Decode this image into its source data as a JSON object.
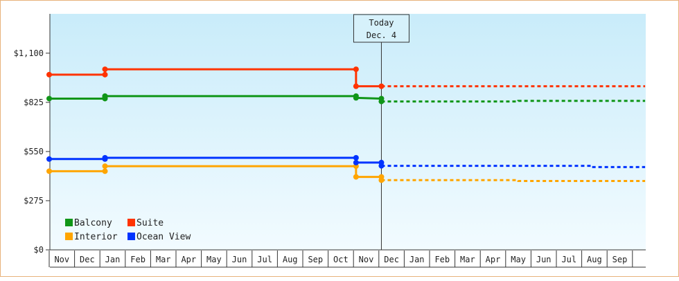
{
  "chart_data": {
    "type": "line",
    "title": "",
    "xlabel": "",
    "ylabel": "",
    "ylim": [
      0,
      1320
    ],
    "yticks": [
      {
        "value": 0,
        "label": "$0"
      },
      {
        "value": 275,
        "label": "$275"
      },
      {
        "value": 550,
        "label": "$550"
      },
      {
        "value": 825,
        "label": "$825"
      },
      {
        "value": 1100,
        "label": "$1,100"
      }
    ],
    "month_labels": [
      "Nov",
      "Dec",
      "Jan",
      "Feb",
      "Mar",
      "Apr",
      "May",
      "Jun",
      "Jul",
      "Aug",
      "Sep",
      "Oct",
      "Nov",
      "Dec",
      "Jan",
      "Feb",
      "Mar",
      "Apr",
      "May",
      "Jun",
      "Jul",
      "Aug",
      "Sep"
    ],
    "today": {
      "month_index": 13.1,
      "line1": "Today",
      "line2": "Dec. 4"
    },
    "legend": {
      "placement": "bottom-left",
      "entries": [
        {
          "name": "Balcony",
          "color": "#109618"
        },
        {
          "name": "Suite",
          "color": "#ff3300"
        },
        {
          "name": "Interior",
          "color": "#ffa500"
        },
        {
          "name": "Ocean View",
          "color": "#0033ff"
        }
      ]
    },
    "grid": false,
    "series": [
      {
        "name": "Balcony",
        "color": "#109618",
        "points": [
          [
            0,
            846
          ],
          [
            2.2,
            846
          ],
          [
            2.2,
            855
          ],
          [
            2.2,
            860
          ],
          [
            12.1,
            860
          ],
          [
            12.1,
            850
          ],
          [
            13.1,
            846
          ],
          [
            13.1,
            830
          ]
        ],
        "markers": [
          [
            0,
            846
          ],
          [
            2.2,
            846
          ],
          [
            2.2,
            855
          ],
          [
            2.2,
            860
          ],
          [
            12.1,
            860
          ],
          [
            12.1,
            850
          ],
          [
            13.1,
            846
          ],
          [
            13.1,
            830
          ]
        ],
        "forecast": [
          [
            13.1,
            830
          ],
          [
            18.5,
            830
          ],
          [
            18.5,
            833
          ],
          [
            23.5,
            833
          ]
        ]
      },
      {
        "name": "Suite",
        "color": "#ff3300",
        "points": [
          [
            0,
            980
          ],
          [
            2.2,
            980
          ],
          [
            2.2,
            1010
          ],
          [
            12.1,
            1010
          ],
          [
            12.1,
            915
          ],
          [
            13.1,
            915
          ]
        ],
        "markers": [
          [
            0,
            980
          ],
          [
            2.2,
            980
          ],
          [
            2.2,
            1010
          ],
          [
            12.1,
            1010
          ],
          [
            12.1,
            915
          ],
          [
            13.1,
            915
          ]
        ],
        "forecast": [
          [
            13.1,
            915
          ],
          [
            23.5,
            915
          ]
        ]
      },
      {
        "name": "Interior",
        "color": "#ffa500",
        "points": [
          [
            0,
            440
          ],
          [
            2.2,
            440
          ],
          [
            2.2,
            468
          ],
          [
            12.1,
            468
          ],
          [
            12.1,
            408
          ],
          [
            13.1,
            408
          ],
          [
            13.1,
            390
          ]
        ],
        "markers": [
          [
            0,
            440
          ],
          [
            2.2,
            440
          ],
          [
            2.2,
            468
          ],
          [
            12.1,
            468
          ],
          [
            12.1,
            408
          ],
          [
            13.1,
            408
          ],
          [
            13.1,
            390
          ]
        ],
        "forecast": [
          [
            13.1,
            390
          ],
          [
            18.5,
            390
          ],
          [
            18.5,
            385
          ],
          [
            23.5,
            385
          ]
        ]
      },
      {
        "name": "Ocean View",
        "color": "#0033ff",
        "points": [
          [
            0,
            508
          ],
          [
            2.2,
            508
          ],
          [
            2.2,
            515
          ],
          [
            12.1,
            515
          ],
          [
            12.1,
            488
          ],
          [
            13.1,
            488
          ],
          [
            13.1,
            470
          ]
        ],
        "markers": [
          [
            0,
            508
          ],
          [
            2.2,
            508
          ],
          [
            2.2,
            515
          ],
          [
            12.1,
            515
          ],
          [
            12.1,
            488
          ],
          [
            13.1,
            488
          ],
          [
            13.1,
            470
          ]
        ],
        "forecast": [
          [
            13.1,
            470
          ],
          [
            21.4,
            470
          ],
          [
            21.4,
            463
          ],
          [
            23.5,
            463
          ]
        ]
      }
    ]
  }
}
